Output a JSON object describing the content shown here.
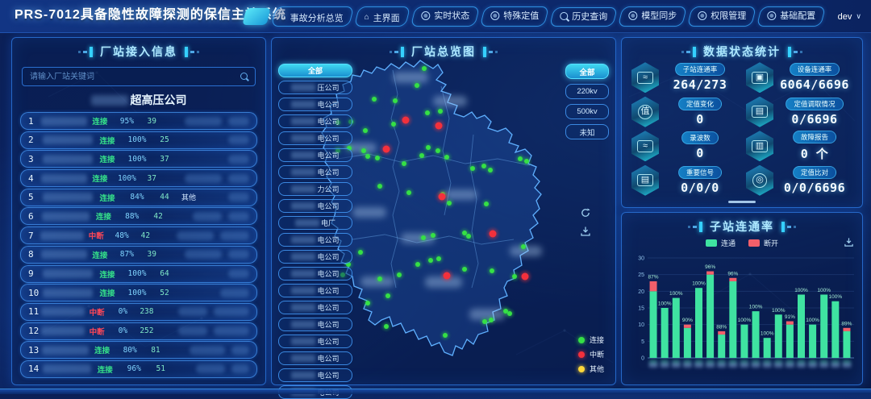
{
  "header": {
    "title": "PRS-7012具备隐性故障探测的保信主站系统",
    "user": "dev",
    "tabs": [
      {
        "label": "事故分析总览",
        "icon": "home"
      },
      {
        "label": "主界面",
        "icon": "home"
      },
      {
        "label": "实时状态",
        "icon": "ring"
      },
      {
        "label": "特殊定值",
        "icon": "ring"
      },
      {
        "label": "历史查询",
        "icon": "search"
      },
      {
        "label": "模型同步",
        "icon": "ring"
      },
      {
        "label": "权限管理",
        "icon": "ring"
      },
      {
        "label": "基础配置",
        "icon": "ring"
      }
    ]
  },
  "left_panel": {
    "title": "厂站接入信息",
    "search_placeholder": "请输入厂站关键词",
    "group_title": "超高压公司",
    "status_colors": {
      "连接": "#35e08a",
      "中断": "#ff4757"
    },
    "rows": [
      {
        "no": "1",
        "status": "连接",
        "rate": "95%",
        "count": "39",
        "extra": "",
        "blurs": [
          46,
          26
        ]
      },
      {
        "no": "2",
        "status": "连接",
        "rate": "100%",
        "count": "25",
        "extra": "",
        "blurs": [
          0,
          26
        ]
      },
      {
        "no": "3",
        "status": "连接",
        "rate": "100%",
        "count": "37",
        "extra": "",
        "blurs": [
          0,
          26
        ]
      },
      {
        "no": "4",
        "status": "连接",
        "rate": "100%",
        "count": "37",
        "extra": "",
        "blurs": [
          46,
          26
        ]
      },
      {
        "no": "5",
        "status": "连接",
        "rate": "84%",
        "count": "44",
        "extra": "其他",
        "blurs": [
          0,
          26
        ]
      },
      {
        "no": "6",
        "status": "连接",
        "rate": "88%",
        "count": "42",
        "extra": "",
        "blurs": [
          36,
          26
        ]
      },
      {
        "no": "7",
        "status": "中断",
        "rate": "48%",
        "count": "42",
        "extra": "",
        "blurs": [
          46,
          36
        ]
      },
      {
        "no": "8",
        "status": "连接",
        "rate": "87%",
        "count": "39",
        "extra": "",
        "blurs": [
          46,
          26
        ]
      },
      {
        "no": "9",
        "status": "连接",
        "rate": "100%",
        "count": "64",
        "extra": "",
        "blurs": [
          0,
          26
        ]
      },
      {
        "no": "10",
        "status": "连接",
        "rate": "100%",
        "count": "52",
        "extra": "",
        "blurs": [
          36,
          0
        ]
      },
      {
        "no": "11",
        "status": "中断",
        "rate": "0%",
        "count": "238",
        "extra": "",
        "blurs": [
          36,
          44
        ]
      },
      {
        "no": "12",
        "status": "中断",
        "rate": "0%",
        "count": "252",
        "extra": "",
        "blurs": [
          36,
          44
        ]
      },
      {
        "no": "13",
        "status": "连接",
        "rate": "80%",
        "count": "81",
        "extra": "",
        "blurs": [
          44,
          22
        ]
      },
      {
        "no": "14",
        "status": "连接",
        "rate": "96%",
        "count": "51",
        "extra": "",
        "blurs": [
          36,
          22
        ]
      }
    ]
  },
  "map_panel": {
    "title": "厂站总览图",
    "company_filters": {
      "selected": "全部",
      "items": [
        "压公司",
        "电公司",
        "电公司",
        "电公司",
        "电公司",
        "电公司",
        "力公司",
        "电公司",
        "电厂",
        "电公司",
        "电公司",
        "电公司",
        "电公司",
        "电公司",
        "电公司",
        "电公司",
        "电公司",
        "电公司",
        "电公司"
      ]
    },
    "voltage_filters": {
      "selected": "全部",
      "items": [
        "220kv",
        "500kv",
        "未知"
      ]
    },
    "legend": [
      {
        "label": "连接",
        "color": "#35e045"
      },
      {
        "label": "中断",
        "color": "#f3303c"
      },
      {
        "label": "其他",
        "color": "#ffd83a"
      }
    ],
    "dots": {
      "green": [
        [
          189,
          38
        ],
        [
          180,
          59
        ],
        [
          153,
          78
        ],
        [
          127,
          76
        ],
        [
          82,
          105
        ],
        [
          98,
          104
        ],
        [
          116,
          115
        ],
        [
          151,
          107
        ],
        [
          193,
          93
        ],
        [
          209,
          91
        ],
        [
          96,
          137
        ],
        [
          114,
          140
        ],
        [
          82,
          140
        ],
        [
          119,
          147
        ],
        [
          194,
          136
        ],
        [
          206,
          140
        ],
        [
          186,
          146
        ],
        [
          217,
          148
        ],
        [
          164,
          156
        ],
        [
          131,
          149
        ],
        [
          263,
          159
        ],
        [
          271,
          164
        ],
        [
          249,
          162
        ],
        [
          308,
          150
        ],
        [
          316,
          153
        ],
        [
          134,
          184
        ],
        [
          170,
          192
        ],
        [
          212,
          194
        ],
        [
          220,
          205
        ],
        [
          266,
          206
        ],
        [
          188,
          248
        ],
        [
          200,
          245
        ],
        [
          239,
          242
        ],
        [
          244,
          246
        ],
        [
          197,
          276
        ],
        [
          207,
          274
        ],
        [
          181,
          281
        ],
        [
          110,
          266
        ],
        [
          95,
          281
        ],
        [
          88,
          294
        ],
        [
          134,
          299
        ],
        [
          144,
          320
        ],
        [
          158,
          294
        ],
        [
          239,
          287
        ],
        [
          273,
          289
        ],
        [
          290,
          339
        ],
        [
          295,
          342
        ],
        [
          264,
          352
        ],
        [
          272,
          350
        ],
        [
          215,
          369
        ],
        [
          142,
          358
        ],
        [
          119,
          329
        ],
        [
          312,
          259
        ],
        [
          301,
          296
        ]
      ],
      "red": [
        [
          166,
          102
        ],
        [
          207,
          109
        ],
        [
          142,
          138
        ],
        [
          211,
          197
        ],
        [
          274,
          243
        ],
        [
          217,
          295
        ],
        [
          314,
          296
        ]
      ]
    }
  },
  "stats_panel": {
    "title": "数据状态统计",
    "items": [
      {
        "label": "子站连通率",
        "value": "264/273",
        "icon": "monitor-pulse"
      },
      {
        "label": "设备连通率",
        "value": "6064/6696",
        "icon": "device-screen"
      },
      {
        "label": "定值变化",
        "value": "0",
        "icon": "value-badge"
      },
      {
        "label": "定值调取情况",
        "value": "0/6696",
        "icon": "doc-fetch"
      },
      {
        "label": "录波数",
        "value": "0",
        "icon": "waveform"
      },
      {
        "label": "故障报告",
        "value": "0 个",
        "icon": "fault-report"
      },
      {
        "label": "重要信号",
        "value": "0/0/0",
        "icon": "signal-doc"
      },
      {
        "label": "定值比对",
        "value": "0/0/6696",
        "icon": "compare-target"
      }
    ]
  },
  "chart_panel": {
    "title": "子站连通率",
    "legend": [
      {
        "label": "连通",
        "color": "#3fe3a1"
      },
      {
        "label": "断开",
        "color": "#f25f6a"
      }
    ]
  },
  "chart_data": {
    "type": "bar",
    "stacked": true,
    "categories": [
      "",
      "",
      "",
      "",
      "",
      "",
      "",
      "",
      "",
      "",
      "",
      "",
      "",
      "",
      "",
      "",
      "",
      ""
    ],
    "series": [
      {
        "name": "连通",
        "color": "#3fe3a1",
        "values": [
          20,
          15,
          18,
          9,
          21,
          25,
          7,
          23,
          10,
          14,
          6,
          13,
          10,
          19,
          10,
          19,
          17,
          8
        ]
      },
      {
        "name": "断开",
        "color": "#f25f6a",
        "values": [
          3,
          0,
          0,
          1,
          0,
          1,
          1,
          1,
          0,
          0,
          0,
          0,
          1,
          0,
          0,
          0,
          0,
          1
        ]
      }
    ],
    "bar_labels": [
      "87%",
      "100%",
      "100%",
      "90%",
      "100%",
      "96%",
      "88%",
      "96%",
      "100%",
      "100%",
      "100%",
      "100%",
      "91%",
      "100%",
      "100%",
      "100%",
      "100%",
      "89%"
    ],
    "ylim": [
      0,
      30
    ],
    "yticks": [
      0,
      5,
      10,
      15,
      20,
      25,
      30
    ]
  }
}
